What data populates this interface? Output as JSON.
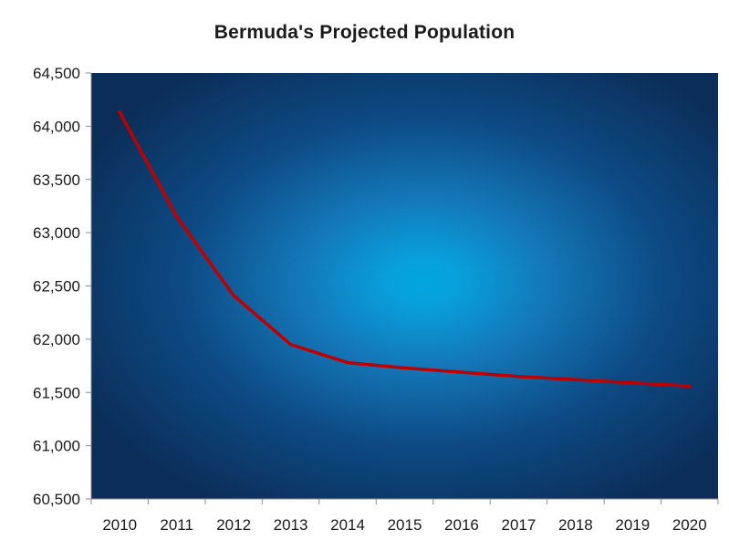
{
  "chart_data": {
    "type": "line",
    "title": "Bermuda's Projected Population",
    "xlabel": "",
    "ylabel": "",
    "categories": [
      "2010",
      "2011",
      "2012",
      "2013",
      "2014",
      "2015",
      "2016",
      "2017",
      "2018",
      "2019",
      "2020"
    ],
    "series": [
      {
        "values": [
          64130,
          63150,
          62410,
          61950,
          61780,
          61730,
          61690,
          61650,
          61620,
          61590,
          61560
        ],
        "color": "#c00000"
      }
    ],
    "ylim": [
      60500,
      64500
    ],
    "yticks": [
      60500,
      61000,
      61500,
      62000,
      62500,
      63000,
      63500,
      64000,
      64500
    ],
    "ytick_labels": [
      "60,500",
      "61,000",
      "61,500",
      "62,000",
      "62,500",
      "63,000",
      "63,500",
      "64,000",
      "64,500"
    ],
    "grid": false,
    "legend": "none",
    "plot_background": {
      "center_color": "#00a6e0",
      "edge_color": "#0b2d57"
    }
  }
}
